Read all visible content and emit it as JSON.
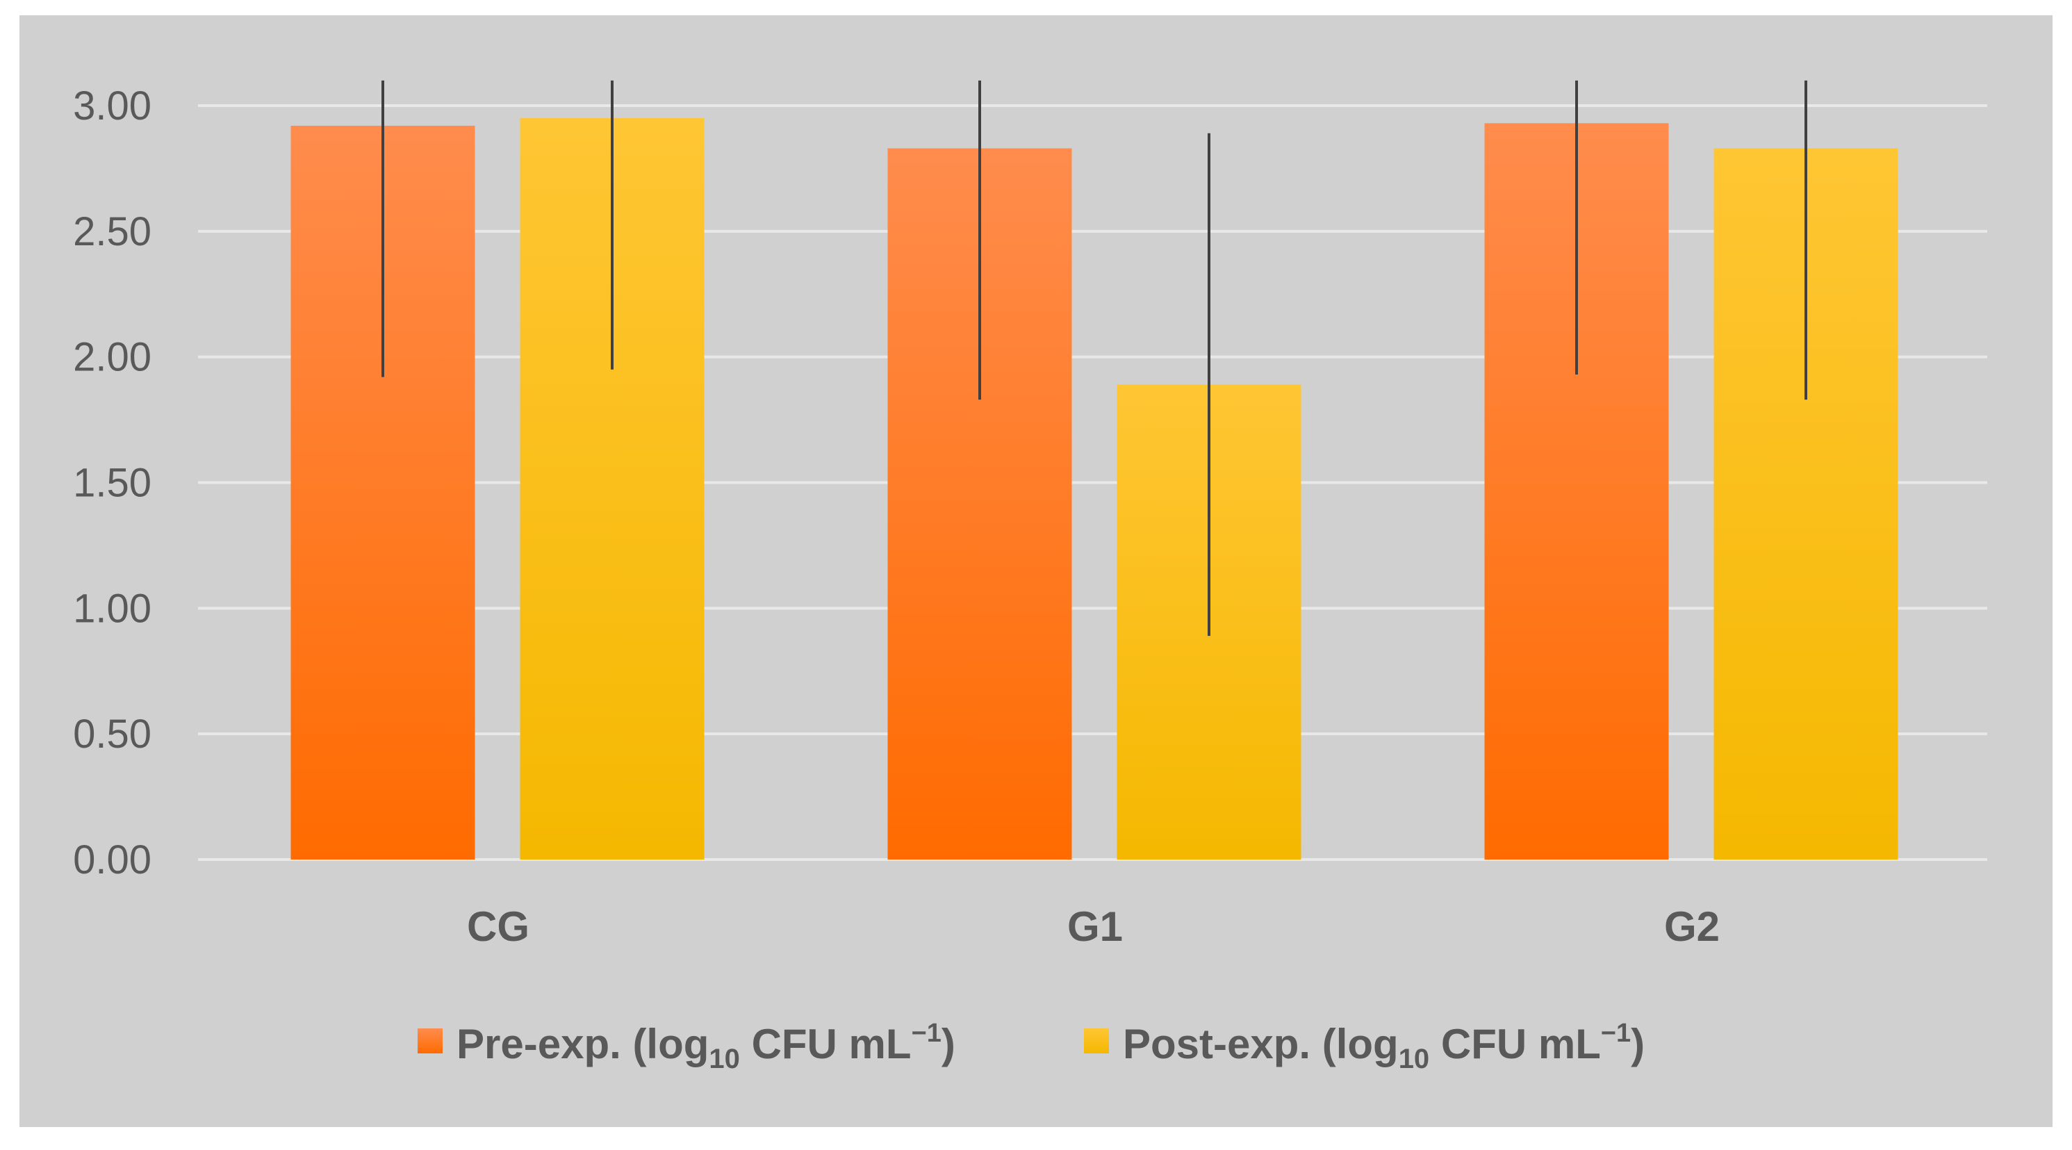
{
  "chart_data": {
    "type": "bar",
    "title": "",
    "xlabel": "",
    "ylabel": "",
    "categories": [
      "CG",
      "G1",
      "G2"
    ],
    "ylim": [
      0,
      3.0
    ],
    "yticks": [
      "0.00",
      "0.50",
      "1.00",
      "1.50",
      "2.00",
      "2.50",
      "3.00"
    ],
    "grid": true,
    "legend_position": "bottom",
    "series": [
      {
        "name": "Pre-exp.",
        "legend_main": "Pre-exp. (log",
        "legend_sub": "10",
        "legend_unit": " CFU mL",
        "legend_sup": "−1",
        "legend_close": ")",
        "values": [
          2.92,
          2.83,
          2.93
        ],
        "errors": [
          1.0,
          1.0,
          1.0
        ],
        "color_top": "#ff8c4d",
        "color_bottom": "#ff6b00"
      },
      {
        "name": "Post-exp.",
        "legend_main": "Post-exp. (log",
        "legend_sub": "10",
        "legend_unit": " CFU mL",
        "legend_sup": "−1",
        "legend_close": ")",
        "values": [
          2.95,
          1.89,
          2.83
        ],
        "errors": [
          1.0,
          1.0,
          1.0
        ],
        "color_top": "#ffc634",
        "color_bottom": "#f5b800"
      }
    ]
  },
  "colors": {
    "plot_background": "#d0d0d0",
    "grid": "#e8e8e8",
    "error_bar": "#404040",
    "text": "#595959"
  }
}
